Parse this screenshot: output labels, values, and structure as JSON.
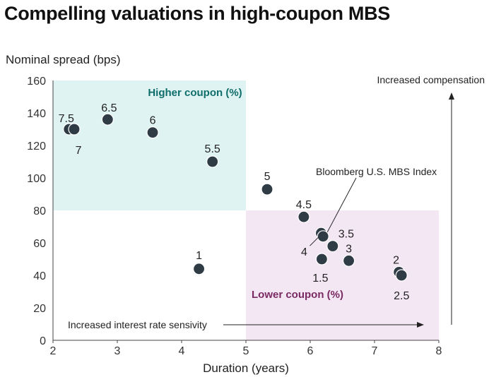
{
  "title": "Compelling valuations in high-coupon MBS",
  "chart_data": {
    "type": "scatter",
    "title": "Compelling valuations in high-coupon MBS",
    "xlabel": "Duration (years)",
    "ylabel": "Nominal spread (bps)",
    "xlim": [
      2,
      8
    ],
    "ylim": [
      0,
      160
    ],
    "x_ticks": [
      2,
      3,
      4,
      5,
      6,
      7,
      8
    ],
    "y_ticks": [
      0,
      20,
      40,
      60,
      80,
      100,
      120,
      140,
      160
    ],
    "grid": false,
    "regions": [
      {
        "name": "Higher coupon (%)",
        "x": [
          2,
          5
        ],
        "y": [
          80,
          160
        ],
        "color": "#dff3f3"
      },
      {
        "name": "Lower coupon (%)",
        "x": [
          5,
          8
        ],
        "y": [
          0,
          80
        ],
        "color": "#f4e7f4"
      }
    ],
    "points": [
      {
        "label": "7.5",
        "x": 2.25,
        "y": 130
      },
      {
        "label": "7",
        "x": 2.33,
        "y": 130
      },
      {
        "label": "6.5",
        "x": 2.85,
        "y": 136
      },
      {
        "label": "6",
        "x": 3.55,
        "y": 128
      },
      {
        "label": "5.5",
        "x": 4.48,
        "y": 110
      },
      {
        "label": "5",
        "x": 5.33,
        "y": 93
      },
      {
        "label": "4.5",
        "x": 5.9,
        "y": 76
      },
      {
        "label": "4",
        "x": 6.17,
        "y": 66
      },
      {
        "label": "Bloomberg U.S. MBS Index",
        "x": 6.2,
        "y": 64
      },
      {
        "label": "3.5",
        "x": 6.35,
        "y": 58
      },
      {
        "label": "1.5",
        "x": 6.18,
        "y": 50
      },
      {
        "label": "3",
        "x": 6.6,
        "y": 49
      },
      {
        "label": "2",
        "x": 7.38,
        "y": 42
      },
      {
        "label": "2.5",
        "x": 7.42,
        "y": 40
      },
      {
        "label": "1",
        "x": 4.27,
        "y": 44
      }
    ],
    "point_color": "#2f3b45",
    "annotations": {
      "x_arrow": "Increased interest rate sensivity",
      "y_arrow": "Increased compensation"
    }
  }
}
